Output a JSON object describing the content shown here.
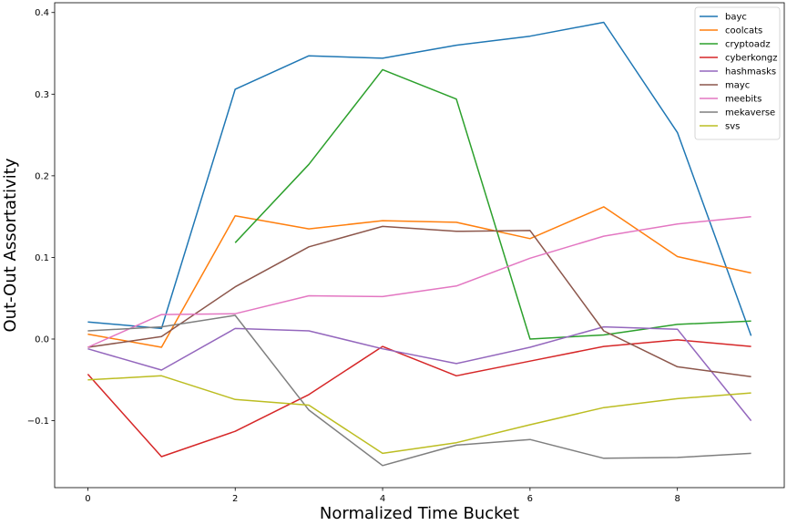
{
  "chart_data": {
    "type": "line",
    "title": "",
    "xlabel": "Normalized Time Bucket",
    "ylabel": "Out-Out Assortativity",
    "xlim": [
      -0.45,
      9.45
    ],
    "ylim": [
      -0.182,
      0.412
    ],
    "xticks": [
      0,
      2,
      4,
      6,
      8
    ],
    "yticks": [
      -0.1,
      0.0,
      0.1,
      0.2,
      0.3,
      0.4
    ],
    "ytick_labels": [
      "−0.1",
      "0.0",
      "0.1",
      "0.2",
      "0.3",
      "0.4"
    ],
    "grid": false,
    "legend_position": "top-right",
    "series": [
      {
        "name": "bayc",
        "color": "#1f77b4",
        "x": [
          0,
          1,
          2,
          3,
          4,
          5,
          6,
          7,
          8,
          9
        ],
        "y": [
          0.021,
          0.013,
          0.306,
          0.347,
          0.344,
          0.36,
          0.371,
          0.388,
          0.253,
          0.004
        ]
      },
      {
        "name": "coolcats",
        "color": "#ff7f0e",
        "x": [
          0,
          1,
          2,
          3,
          4,
          5,
          6,
          7,
          8,
          9
        ],
        "y": [
          0.006,
          -0.01,
          0.151,
          0.135,
          0.145,
          0.143,
          0.123,
          0.162,
          0.101,
          0.081
        ]
      },
      {
        "name": "cryptoadz",
        "color": "#2ca02c",
        "x": [
          2,
          3,
          4,
          5,
          6,
          7,
          8,
          9
        ],
        "y": [
          0.118,
          0.214,
          0.33,
          0.294,
          0.0,
          0.005,
          0.018,
          0.022
        ]
      },
      {
        "name": "cyberkongz",
        "color": "#d62728",
        "x": [
          0,
          1,
          2,
          3,
          4,
          5,
          6,
          7,
          8,
          9
        ],
        "y": [
          -0.043,
          -0.144,
          -0.113,
          -0.068,
          -0.009,
          -0.045,
          -0.027,
          -0.009,
          -0.001,
          -0.009
        ]
      },
      {
        "name": "hashmasks",
        "color": "#9467bd",
        "x": [
          0,
          1,
          2,
          3,
          4,
          5,
          6,
          7,
          8,
          9
        ],
        "y": [
          -0.012,
          -0.038,
          0.013,
          0.01,
          -0.012,
          -0.03,
          -0.01,
          0.015,
          0.012,
          -0.1
        ]
      },
      {
        "name": "mayc",
        "color": "#8c564b",
        "x": [
          0,
          1,
          2,
          3,
          4,
          5,
          6,
          7,
          8,
          9
        ],
        "y": [
          -0.01,
          0.003,
          0.064,
          0.113,
          0.138,
          0.132,
          0.133,
          0.01,
          -0.034,
          -0.046
        ]
      },
      {
        "name": "meebits",
        "color": "#e377c2",
        "x": [
          0,
          1,
          2,
          3,
          4,
          5,
          6,
          7,
          8,
          9
        ],
        "y": [
          -0.01,
          0.03,
          0.031,
          0.053,
          0.052,
          0.065,
          0.099,
          0.126,
          0.141,
          0.15
        ]
      },
      {
        "name": "mekaverse",
        "color": "#7f7f7f",
        "x": [
          0,
          1,
          2,
          3,
          4,
          5,
          6,
          7,
          8,
          9
        ],
        "y": [
          0.01,
          0.015,
          0.029,
          -0.087,
          -0.155,
          -0.13,
          -0.123,
          -0.146,
          -0.145,
          -0.14
        ]
      },
      {
        "name": "svs",
        "color": "#bcbd22",
        "x": [
          0,
          1,
          2,
          3,
          4,
          5,
          6,
          7,
          8,
          9
        ],
        "y": [
          -0.05,
          -0.045,
          -0.074,
          -0.081,
          -0.14,
          -0.127,
          -0.105,
          -0.084,
          -0.073,
          -0.066
        ]
      }
    ]
  }
}
